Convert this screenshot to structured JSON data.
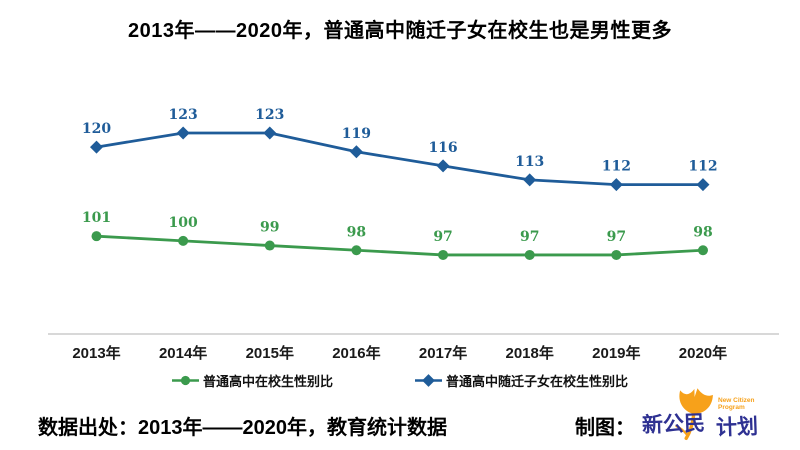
{
  "title": "2013年——2020年，普通高中随迁子女在校生也是男性更多",
  "chart_data": {
    "type": "line",
    "categories": [
      "2013年",
      "2014年",
      "2015年",
      "2016年",
      "2017年",
      "2018年",
      "2019年",
      "2020年"
    ],
    "series": [
      {
        "name": "普通高中在校生性别比",
        "color": "#3B9A4D",
        "marker": "circle",
        "values": [
          101,
          100,
          99,
          98,
          97,
          97,
          97,
          98
        ]
      },
      {
        "name": "普通高中随迁子女在校生性别比",
        "color": "#1F5C99",
        "marker": "diamond",
        "values": [
          120,
          123,
          123,
          119,
          116,
          113,
          112,
          112
        ]
      }
    ],
    "title": "2013年——2020年，普通高中随迁子女在校生也是男性更多",
    "xlabel": "",
    "ylabel": "",
    "ylim": [
      90,
      130
    ],
    "grid": false,
    "legend_position": "bottom",
    "axis_color": "#D8D8D8",
    "value_labels": true
  },
  "footer": {
    "source": "数据出处：2013年——2020年，教育统计数据",
    "credit_label": "制图：",
    "logo": {
      "cn_left": "新公民",
      "cn_right": "计划",
      "en_line1": "New Citizen",
      "en_line2": "Program",
      "leaf_color": "#F7A11A",
      "text_color": "#2E3192"
    }
  }
}
